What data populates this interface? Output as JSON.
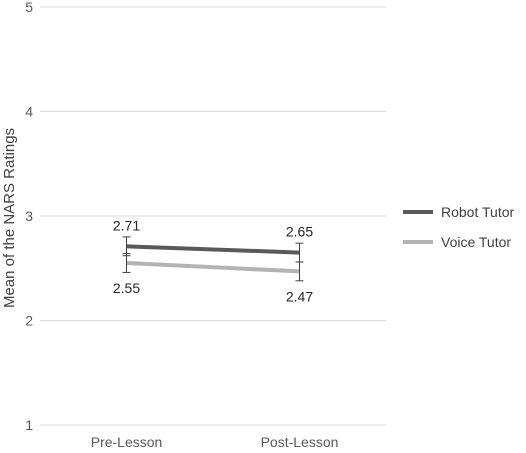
{
  "chart_data": {
    "type": "line",
    "ylabel": "Mean of the NARS Ratings",
    "xlabel": "",
    "categories": [
      "Pre-Lesson",
      "Post-Lesson"
    ],
    "ylim": [
      1,
      5
    ],
    "yticks": [
      1,
      2,
      3,
      4,
      5
    ],
    "grid": true,
    "legend_position": "right",
    "series": [
      {
        "name": "Robot Tutor",
        "color": "#595959",
        "values": [
          2.71,
          2.65
        ],
        "labels": [
          "2.71",
          "2.65"
        ],
        "error": [
          0.09,
          0.09
        ],
        "label_side": "above"
      },
      {
        "name": "Voice Tutor",
        "color": "#b3b3b3",
        "values": [
          2.55,
          2.47
        ],
        "labels": [
          "2.55",
          "2.47"
        ],
        "error": [
          0.09,
          0.09
        ],
        "label_side": "below"
      }
    ]
  }
}
